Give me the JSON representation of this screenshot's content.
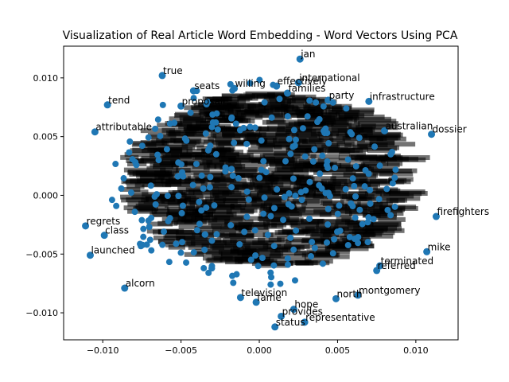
{
  "chart_data": {
    "type": "scatter",
    "title": "Visualization of Real Article Word Embedding - Word Vectors Using PCA",
    "xlabel": "",
    "ylabel": "",
    "xlim": [
      -0.0125,
      0.0127
    ],
    "ylim": [
      -0.0123,
      0.0127
    ],
    "xticks": [
      -0.01,
      -0.005,
      0.0,
      0.005,
      0.01
    ],
    "xtick_labels": [
      "−0.010",
      "−0.005",
      "0.000",
      "0.005",
      "0.010"
    ],
    "yticks": [
      -0.01,
      -0.005,
      0.0,
      0.005,
      0.01
    ],
    "ytick_labels": [
      "−0.010",
      "−0.005",
      "0.000",
      "0.005",
      "0.010"
    ],
    "grid": false,
    "marker_color": "#1f77b4",
    "points": [
      {
        "word": "jan",
        "x": 0.0026,
        "y": 0.0116
      },
      {
        "word": "international",
        "x": 0.0025,
        "y": 0.0096
      },
      {
        "word": "true",
        "x": -0.0062,
        "y": 0.0102
      },
      {
        "word": "seats",
        "x": -0.0042,
        "y": 0.0089
      },
      {
        "word": "willing",
        "x": -0.0016,
        "y": 0.0091
      },
      {
        "word": "effectively",
        "x": 0.0011,
        "y": 0.0093
      },
      {
        "word": "families",
        "x": 0.0018,
        "y": 0.0087
      },
      {
        "word": "infrastructure",
        "x": 0.007,
        "y": 0.008
      },
      {
        "word": "party",
        "x": 0.0044,
        "y": 0.0081
      },
      {
        "word": "tend",
        "x": -0.0097,
        "y": 0.0077
      },
      {
        "word": "proposal",
        "x": -0.005,
        "y": 0.0076
      },
      {
        "word": "attributable",
        "x": -0.0105,
        "y": 0.0054
      },
      {
        "word": "dossier",
        "x": 0.011,
        "y": 0.0052
      },
      {
        "word": "australian",
        "x": 0.008,
        "y": 0.0055
      },
      {
        "word": "firefighters",
        "x": 0.0113,
        "y": -0.0018
      },
      {
        "word": "mike",
        "x": 0.0107,
        "y": -0.0048
      },
      {
        "word": "regrets",
        "x": -0.0111,
        "y": -0.0026
      },
      {
        "word": "class",
        "x": -0.0099,
        "y": -0.0034
      },
      {
        "word": "launched",
        "x": -0.0108,
        "y": -0.0051
      },
      {
        "word": "alcorn",
        "x": -0.0086,
        "y": -0.0079
      },
      {
        "word": "referred",
        "x": 0.0075,
        "y": -0.0064
      },
      {
        "word": "terminated",
        "x": 0.0077,
        "y": -0.006
      },
      {
        "word": "montgomery",
        "x": 0.0063,
        "y": -0.0085
      },
      {
        "word": "north",
        "x": 0.0049,
        "y": -0.0088
      },
      {
        "word": "hope",
        "x": 0.0022,
        "y": -0.0097
      },
      {
        "word": "provides",
        "x": 0.0014,
        "y": -0.0103
      },
      {
        "word": "representative",
        "x": 0.0029,
        "y": -0.0108
      },
      {
        "word": "status",
        "x": 0.001,
        "y": -0.0112
      },
      {
        "word": "fame",
        "x": -0.0002,
        "y": -0.0091
      },
      {
        "word": "television",
        "x": -0.0012,
        "y": -0.0087
      }
    ]
  }
}
